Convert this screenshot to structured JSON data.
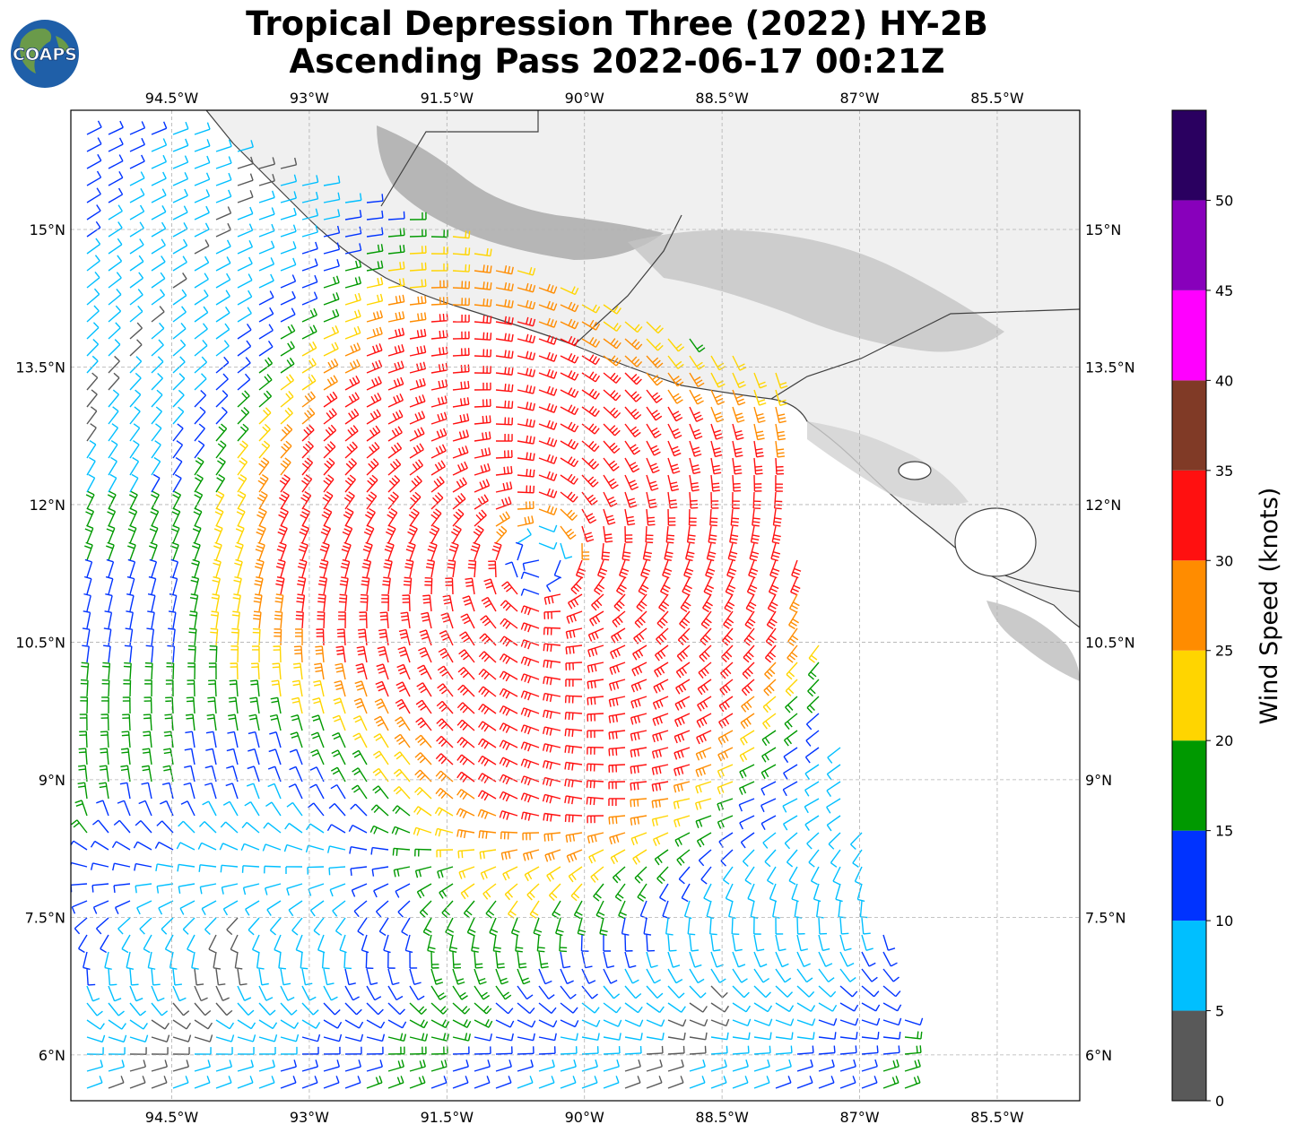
{
  "title": {
    "line1": "Tropical Depression Three (2022) HY-2B",
    "line2": "Ascending Pass 2022-06-17 00:21Z"
  },
  "logo": {
    "text": "COAPS",
    "icon": "globe-icon",
    "ocean_color": "#1f5fa8",
    "land_color": "#6a9a4a"
  },
  "map": {
    "lon_range": [
      -95.6,
      -84.6
    ],
    "lat_range": [
      5.5,
      16.3
    ],
    "lon_ticks": [
      "94.5°W",
      "93°W",
      "91.5°W",
      "90°W",
      "88.5°W",
      "87°W",
      "85.5°W"
    ],
    "lon_tick_values": [
      -94.5,
      -93,
      -91.5,
      -90,
      -88.5,
      -87,
      -85.5
    ],
    "lat_ticks": [
      "15°N",
      "13.5°N",
      "12°N",
      "10.5°N",
      "9°N",
      "7.5°N",
      "6°N"
    ],
    "lat_tick_values": [
      15,
      13.5,
      12,
      10.5,
      9,
      7.5,
      6
    ],
    "gridlines": true,
    "land_shading": "grayscale terrain",
    "coastline_color": "#404040"
  },
  "chart_data": {
    "type": "wind-barbs",
    "storm_center": {
      "lon": -90.5,
      "lat": 11.4
    },
    "swath_east_edge_lon": {
      "at_lat_12": -87.8,
      "at_lat_6": -86.4
    },
    "max_wind_knots": 35,
    "colorbar": {
      "label": "Wind Speed (knots)",
      "ticks": [
        "0",
        "5",
        "10",
        "15",
        "20",
        "25",
        "30",
        "35",
        "40",
        "45",
        "50"
      ],
      "bins": [
        {
          "min": 0,
          "max": 5,
          "color": "#595959"
        },
        {
          "min": 5,
          "max": 10,
          "color": "#00bfff"
        },
        {
          "min": 10,
          "max": 15,
          "color": "#0033ff"
        },
        {
          "min": 15,
          "max": 20,
          "color": "#009900"
        },
        {
          "min": 20,
          "max": 25,
          "color": "#ffd500"
        },
        {
          "min": 25,
          "max": 30,
          "color": "#ff8c00"
        },
        {
          "min": 30,
          "max": 35,
          "color": "#ff1010"
        },
        {
          "min": 35,
          "max": 40,
          "color": "#803a26"
        },
        {
          "min": 40,
          "max": 45,
          "color": "#ff00ff"
        },
        {
          "min": 45,
          "max": 50,
          "color": "#8800bb"
        },
        {
          "min": 50,
          "max": 55,
          "color": "#2a0060"
        }
      ]
    }
  }
}
